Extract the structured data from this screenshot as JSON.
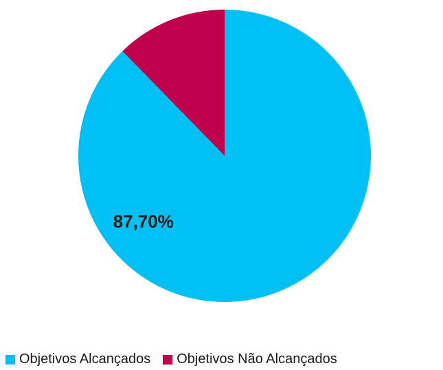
{
  "chart_data": {
    "type": "pie",
    "title": "",
    "slices": [
      {
        "label": "Objetivos Alcançados",
        "value": 87.7,
        "color": "#00bff2",
        "data_label": "87,70%"
      },
      {
        "label": "Objetivos Não Alcançados",
        "value": 12.3,
        "color": "#c0004a",
        "data_label": ""
      }
    ],
    "start_angle_deg": 0,
    "direction": "clockwise",
    "legend_position": "bottom"
  }
}
